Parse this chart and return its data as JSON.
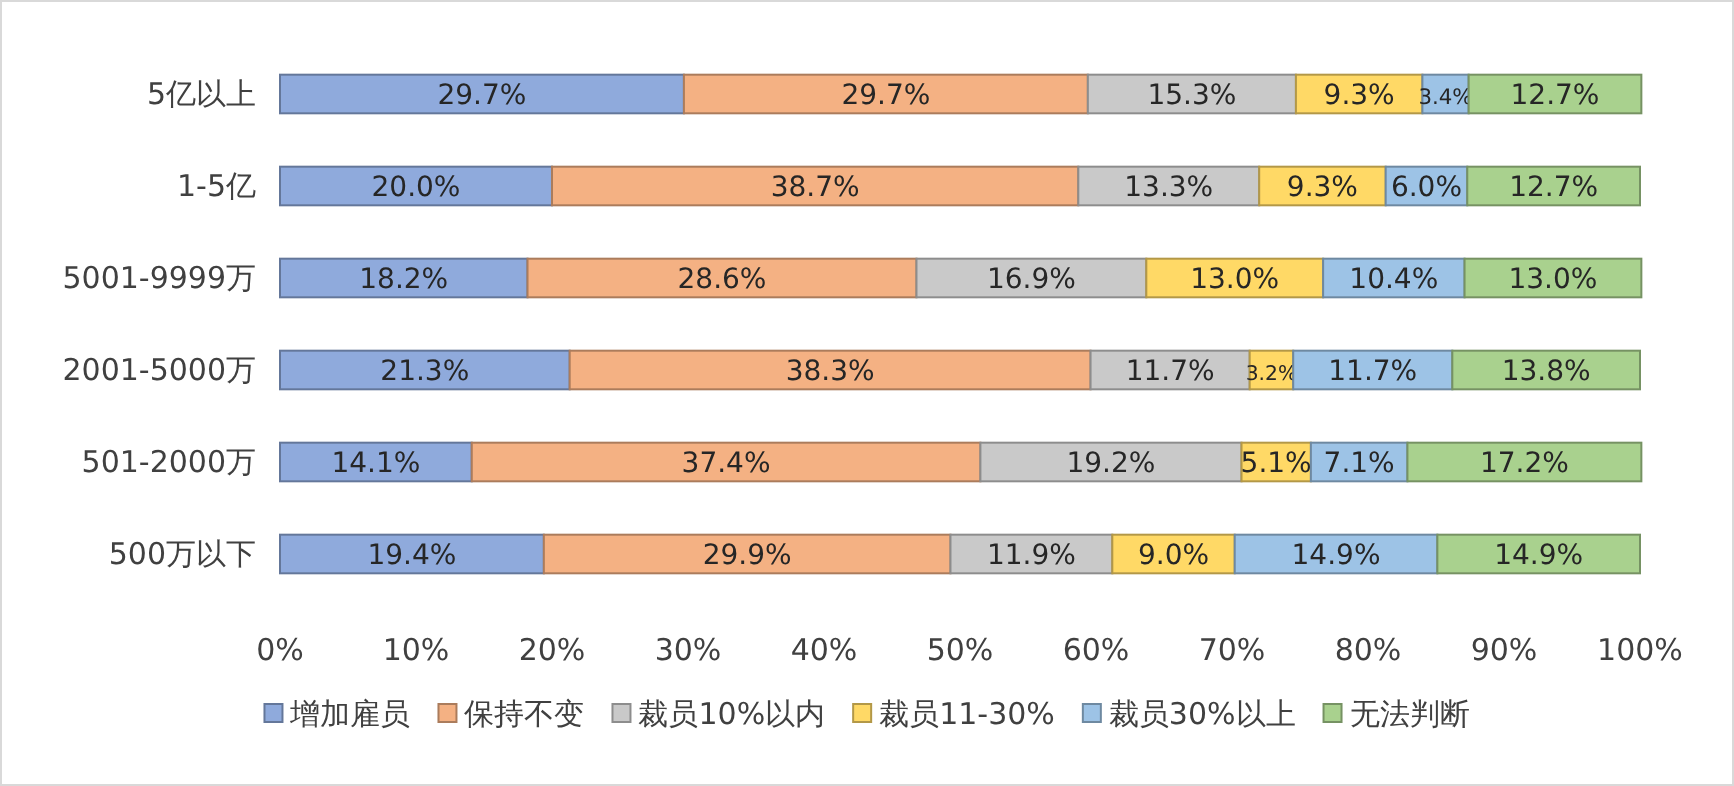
{
  "chart_data": {
    "type": "bar",
    "orientation": "horizontal",
    "stacked": true,
    "legend": "bottom",
    "categories": [
      "5亿以上",
      "1-5亿",
      "5001-9999万",
      "2001-5000万",
      "501-2000万",
      "500万以下"
    ],
    "xlim": [
      0,
      100
    ],
    "xticks": [
      {
        "value": 0,
        "label": "0%"
      },
      {
        "value": 10,
        "label": "10%"
      },
      {
        "value": 20,
        "label": "20%"
      },
      {
        "value": 30,
        "label": "30%"
      },
      {
        "value": 40,
        "label": "40%"
      },
      {
        "value": 50,
        "label": "50%"
      },
      {
        "value": 60,
        "label": "60%"
      },
      {
        "value": 70,
        "label": "70%"
      },
      {
        "value": 80,
        "label": "80%"
      },
      {
        "value": 90,
        "label": "90%"
      },
      {
        "value": 100,
        "label": "100%"
      }
    ],
    "series": [
      {
        "name": "增加雇员",
        "color": "#8faadc",
        "values": [
          29.7,
          20.0,
          18.2,
          21.3,
          14.1,
          19.4
        ],
        "value_labels": [
          "29.7%",
          "20.0%",
          "18.2%",
          "21.3%",
          "14.1%",
          "19.4%"
        ]
      },
      {
        "name": "保持不变",
        "color": "#f4b183",
        "values": [
          29.7,
          38.7,
          28.6,
          38.3,
          37.4,
          29.9
        ],
        "value_labels": [
          "29.7%",
          "38.7%",
          "28.6%",
          "38.3%",
          "37.4%",
          "29.9%"
        ]
      },
      {
        "name": "裁员10%以内",
        "color": "#c9c9c9",
        "values": [
          15.3,
          13.3,
          16.9,
          11.7,
          19.2,
          11.9
        ],
        "value_labels": [
          "15.3%",
          "13.3%",
          "16.9%",
          "11.7%",
          "19.2%",
          "11.9%"
        ]
      },
      {
        "name": "裁员11-30%",
        "color": "#ffd966",
        "values": [
          9.3,
          9.3,
          13.0,
          3.2,
          5.1,
          9.0
        ],
        "value_labels": [
          "9.3%",
          "9.3%",
          "13.0%",
          "3.2%",
          "5.1%",
          "9.0%"
        ]
      },
      {
        "name": "裁员30%以上",
        "color": "#9dc3e6",
        "values": [
          3.4,
          6.0,
          10.4,
          11.7,
          7.1,
          14.9
        ],
        "value_labels": [
          "3.4%",
          "6.0%",
          "10.4%",
          "11.7%",
          "7.1%",
          "14.9%"
        ]
      },
      {
        "name": "无法判断",
        "color": "#a9d18e",
        "values": [
          12.7,
          12.7,
          13.0,
          13.8,
          17.2,
          14.9
        ],
        "value_labels": [
          "12.7%",
          "12.7%",
          "13.0%",
          "13.8%",
          "17.2%",
          "14.9%"
        ]
      }
    ]
  }
}
